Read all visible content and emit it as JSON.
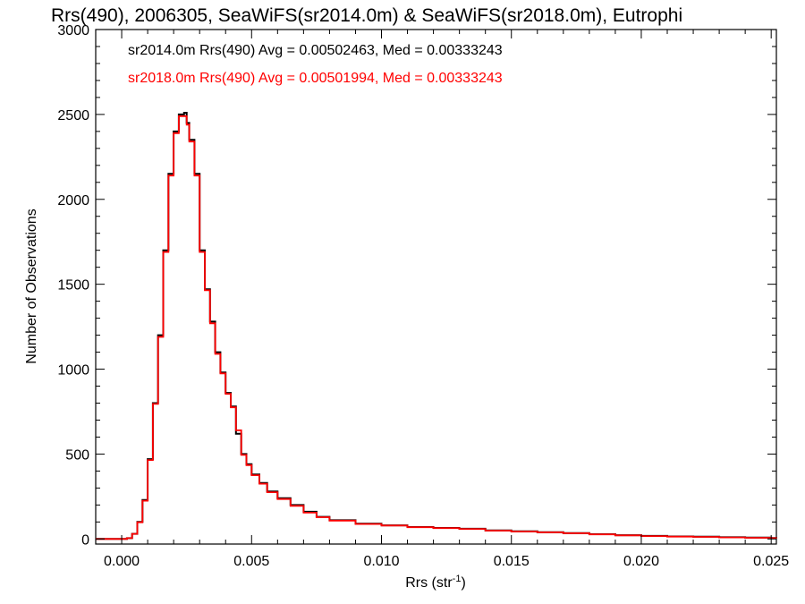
{
  "chart_data": {
    "type": "line",
    "title": "Rrs(490), 2006305, SeaWiFS(sr2014.0m) & SeaWiFS(sr2018.0m), Eutrophi",
    "xlabel": "Rrs (str",
    "xlabel_sup": "-1",
    "xlabel_close": ")",
    "ylabel": "Number of Observations",
    "xlim": [
      -0.001,
      0.0252
    ],
    "ylim": [
      -30,
      3000
    ],
    "xticks": [
      "0.000",
      "0.005",
      "0.010",
      "0.015",
      "0.020",
      "0.025"
    ],
    "yticks": [
      "0",
      "500",
      "1000",
      "1500",
      "2000",
      "2500",
      "3000"
    ],
    "grid": false,
    "series": [
      {
        "name": "sr2014.0m",
        "color": "#000000",
        "x": [
          -0.001,
          0.0,
          0.0002,
          0.0004,
          0.0006,
          0.0008,
          0.001,
          0.0012,
          0.0014,
          0.0016,
          0.0018,
          0.002,
          0.0022,
          0.0024,
          0.0025,
          0.0026,
          0.0028,
          0.003,
          0.0032,
          0.0034,
          0.0036,
          0.0038,
          0.004,
          0.0042,
          0.0044,
          0.0046,
          0.0048,
          0.005,
          0.0053,
          0.0056,
          0.006,
          0.0065,
          0.007,
          0.0075,
          0.008,
          0.009,
          0.01,
          0.011,
          0.012,
          0.013,
          0.014,
          0.015,
          0.016,
          0.017,
          0.018,
          0.019,
          0.02,
          0.021,
          0.022,
          0.023,
          0.024,
          0.025,
          0.0252
        ],
        "y": [
          0,
          0,
          5,
          30,
          100,
          230,
          470,
          800,
          1200,
          1700,
          2150,
          2400,
          2500,
          2510,
          2450,
          2350,
          2150,
          1700,
          1470,
          1280,
          1100,
          980,
          860,
          780,
          620,
          500,
          440,
          380,
          330,
          280,
          240,
          200,
          160,
          130,
          110,
          90,
          80,
          70,
          65,
          60,
          50,
          45,
          40,
          35,
          28,
          22,
          18,
          15,
          13,
          10,
          8,
          6,
          5
        ]
      },
      {
        "name": "sr2018.0m",
        "color": "#ff0000",
        "x": [
          -0.001,
          0.0,
          0.0002,
          0.0004,
          0.0006,
          0.0008,
          0.001,
          0.0012,
          0.0014,
          0.0016,
          0.0018,
          0.002,
          0.0022,
          0.0024,
          0.0025,
          0.0026,
          0.0028,
          0.003,
          0.0032,
          0.0034,
          0.0036,
          0.0038,
          0.004,
          0.0042,
          0.0044,
          0.0046,
          0.0048,
          0.005,
          0.0053,
          0.0056,
          0.006,
          0.0065,
          0.007,
          0.0075,
          0.008,
          0.009,
          0.01,
          0.011,
          0.012,
          0.013,
          0.014,
          0.015,
          0.016,
          0.017,
          0.018,
          0.019,
          0.02,
          0.021,
          0.022,
          0.023,
          0.024,
          0.025,
          0.0252
        ],
        "y": [
          0,
          0,
          5,
          30,
          98,
          225,
          465,
          795,
          1190,
          1690,
          2140,
          2390,
          2490,
          2490,
          2440,
          2340,
          2140,
          1690,
          1465,
          1270,
          1090,
          975,
          855,
          775,
          640,
          495,
          435,
          375,
          325,
          275,
          235,
          195,
          155,
          128,
          108,
          88,
          79,
          69,
          64,
          59,
          49,
          44,
          39,
          34,
          27,
          21,
          17,
          14,
          12,
          9,
          7,
          5,
          4
        ]
      }
    ],
    "annotations": [
      {
        "text": "sr2014.0m Rrs(490) Avg = 0.00502463, Med = 0.00333243",
        "color": "#000000"
      },
      {
        "text": "sr2018.0m Rrs(490) Avg = 0.00501994, Med = 0.00333243",
        "color": "#ff0000"
      }
    ]
  }
}
